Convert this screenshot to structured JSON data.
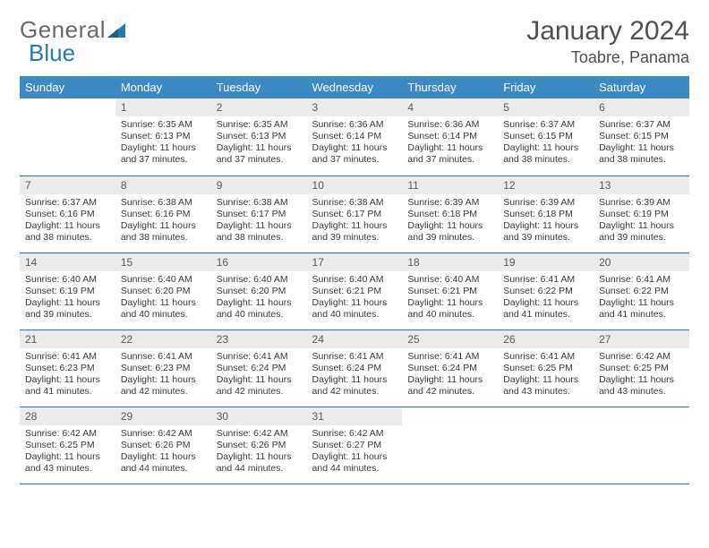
{
  "brand": {
    "text1": "General",
    "text2": "Blue"
  },
  "title": "January 2024",
  "location": "Toabre, Panama",
  "colors": {
    "header_bg": "#3b8ac4",
    "header_text": "#ffffff",
    "daynum_bg": "#ebebeb",
    "rule": "#2f6fa0",
    "logo_gray": "#6a6a6a",
    "logo_blue": "#2a7ab0"
  },
  "weekdays": [
    "Sunday",
    "Monday",
    "Tuesday",
    "Wednesday",
    "Thursday",
    "Friday",
    "Saturday"
  ],
  "start_offset": 1,
  "days": [
    {
      "n": 1,
      "sr": "6:35 AM",
      "ss": "6:13 PM",
      "dl": "11 hours and 37 minutes."
    },
    {
      "n": 2,
      "sr": "6:35 AM",
      "ss": "6:13 PM",
      "dl": "11 hours and 37 minutes."
    },
    {
      "n": 3,
      "sr": "6:36 AM",
      "ss": "6:14 PM",
      "dl": "11 hours and 37 minutes."
    },
    {
      "n": 4,
      "sr": "6:36 AM",
      "ss": "6:14 PM",
      "dl": "11 hours and 37 minutes."
    },
    {
      "n": 5,
      "sr": "6:37 AM",
      "ss": "6:15 PM",
      "dl": "11 hours and 38 minutes."
    },
    {
      "n": 6,
      "sr": "6:37 AM",
      "ss": "6:15 PM",
      "dl": "11 hours and 38 minutes."
    },
    {
      "n": 7,
      "sr": "6:37 AM",
      "ss": "6:16 PM",
      "dl": "11 hours and 38 minutes."
    },
    {
      "n": 8,
      "sr": "6:38 AM",
      "ss": "6:16 PM",
      "dl": "11 hours and 38 minutes."
    },
    {
      "n": 9,
      "sr": "6:38 AM",
      "ss": "6:17 PM",
      "dl": "11 hours and 38 minutes."
    },
    {
      "n": 10,
      "sr": "6:38 AM",
      "ss": "6:17 PM",
      "dl": "11 hours and 39 minutes."
    },
    {
      "n": 11,
      "sr": "6:39 AM",
      "ss": "6:18 PM",
      "dl": "11 hours and 39 minutes."
    },
    {
      "n": 12,
      "sr": "6:39 AM",
      "ss": "6:18 PM",
      "dl": "11 hours and 39 minutes."
    },
    {
      "n": 13,
      "sr": "6:39 AM",
      "ss": "6:19 PM",
      "dl": "11 hours and 39 minutes."
    },
    {
      "n": 14,
      "sr": "6:40 AM",
      "ss": "6:19 PM",
      "dl": "11 hours and 39 minutes."
    },
    {
      "n": 15,
      "sr": "6:40 AM",
      "ss": "6:20 PM",
      "dl": "11 hours and 40 minutes."
    },
    {
      "n": 16,
      "sr": "6:40 AM",
      "ss": "6:20 PM",
      "dl": "11 hours and 40 minutes."
    },
    {
      "n": 17,
      "sr": "6:40 AM",
      "ss": "6:21 PM",
      "dl": "11 hours and 40 minutes."
    },
    {
      "n": 18,
      "sr": "6:40 AM",
      "ss": "6:21 PM",
      "dl": "11 hours and 40 minutes."
    },
    {
      "n": 19,
      "sr": "6:41 AM",
      "ss": "6:22 PM",
      "dl": "11 hours and 41 minutes."
    },
    {
      "n": 20,
      "sr": "6:41 AM",
      "ss": "6:22 PM",
      "dl": "11 hours and 41 minutes."
    },
    {
      "n": 21,
      "sr": "6:41 AM",
      "ss": "6:23 PM",
      "dl": "11 hours and 41 minutes."
    },
    {
      "n": 22,
      "sr": "6:41 AM",
      "ss": "6:23 PM",
      "dl": "11 hours and 42 minutes."
    },
    {
      "n": 23,
      "sr": "6:41 AM",
      "ss": "6:24 PM",
      "dl": "11 hours and 42 minutes."
    },
    {
      "n": 24,
      "sr": "6:41 AM",
      "ss": "6:24 PM",
      "dl": "11 hours and 42 minutes."
    },
    {
      "n": 25,
      "sr": "6:41 AM",
      "ss": "6:24 PM",
      "dl": "11 hours and 42 minutes."
    },
    {
      "n": 26,
      "sr": "6:41 AM",
      "ss": "6:25 PM",
      "dl": "11 hours and 43 minutes."
    },
    {
      "n": 27,
      "sr": "6:42 AM",
      "ss": "6:25 PM",
      "dl": "11 hours and 43 minutes."
    },
    {
      "n": 28,
      "sr": "6:42 AM",
      "ss": "6:25 PM",
      "dl": "11 hours and 43 minutes."
    },
    {
      "n": 29,
      "sr": "6:42 AM",
      "ss": "6:26 PM",
      "dl": "11 hours and 44 minutes."
    },
    {
      "n": 30,
      "sr": "6:42 AM",
      "ss": "6:26 PM",
      "dl": "11 hours and 44 minutes."
    },
    {
      "n": 31,
      "sr": "6:42 AM",
      "ss": "6:27 PM",
      "dl": "11 hours and 44 minutes."
    }
  ],
  "labels": {
    "sunrise": "Sunrise:",
    "sunset": "Sunset:",
    "daylight": "Daylight:"
  }
}
